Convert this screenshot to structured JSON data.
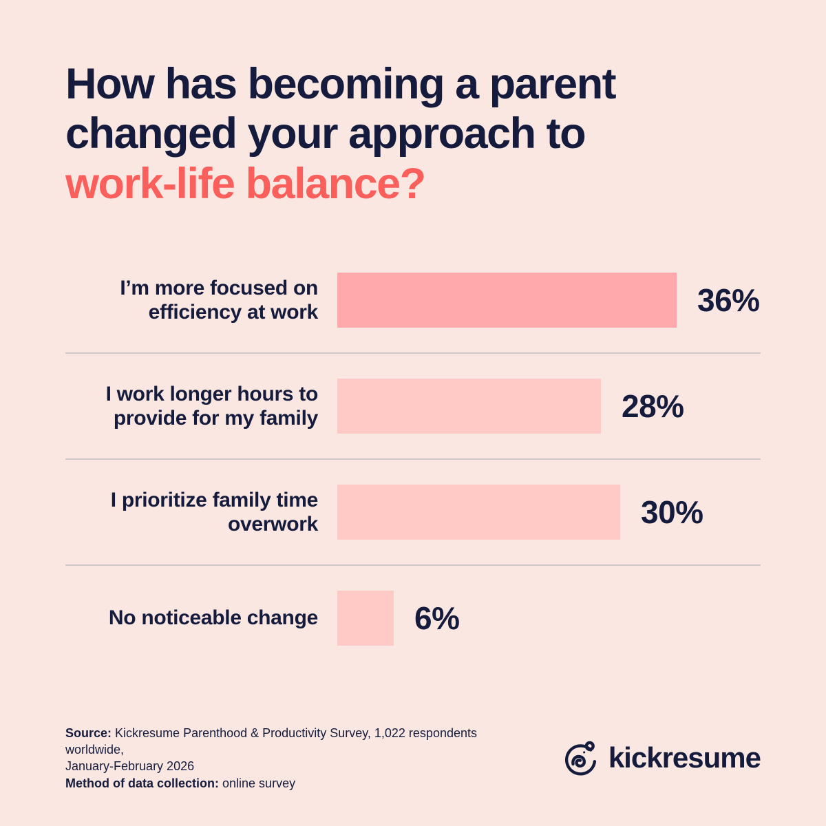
{
  "title": {
    "line1": "How has becoming a parent",
    "line2": "changed your approach to",
    "line3": "work-life balance?"
  },
  "chart_data": {
    "type": "bar",
    "orientation": "horizontal",
    "title": "How has becoming a parent changed your approach to work-life balance?",
    "categories": [
      "I’m more focused on efficiency at work",
      "I work longer hours to provide for my family",
      "I prioritize family time overwork",
      "No noticeable change"
    ],
    "values": [
      36,
      28,
      30,
      6
    ],
    "value_labels": [
      "36%",
      "28%",
      "30%",
      "6%"
    ],
    "xlim": [
      0,
      40
    ],
    "grid": false,
    "legend": false,
    "rows": [
      {
        "label_lines": [
          "I’m more focused on",
          "efficiency at work"
        ],
        "value": 36,
        "value_label": "36%",
        "bar_color": "#FFA9AC"
      },
      {
        "label_lines": [
          "I work longer hours to",
          "provide for my family"
        ],
        "value": 28,
        "value_label": "28%",
        "bar_color": "#FFC9C6"
      },
      {
        "label_lines": [
          "I prioritize family time",
          "overwork"
        ],
        "value": 30,
        "value_label": "30%",
        "bar_color": "#FFC9C6"
      },
      {
        "label_lines": [
          "No noticeable change"
        ],
        "value": 6,
        "value_label": "6%",
        "bar_color": "#FFC9C6"
      }
    ]
  },
  "footer": {
    "source_label": "Source:",
    "source_line1": "Kickresume Parenthood & Productivity Survey, 1,022 respondents worldwide,",
    "source_line2": "January-February 2026",
    "method_label": "Method of data collection:",
    "method_text": "online survey"
  },
  "logo": {
    "text": "kickresume",
    "icon": "chameleon-icon"
  },
  "colors": {
    "background": "#FAE7E2",
    "navy": "#151B3C",
    "accent": "#FA5F5C",
    "bar_primary": "#FFA9AC",
    "bar_secondary": "#FFC9C6",
    "divider": "#CFC6C7"
  }
}
